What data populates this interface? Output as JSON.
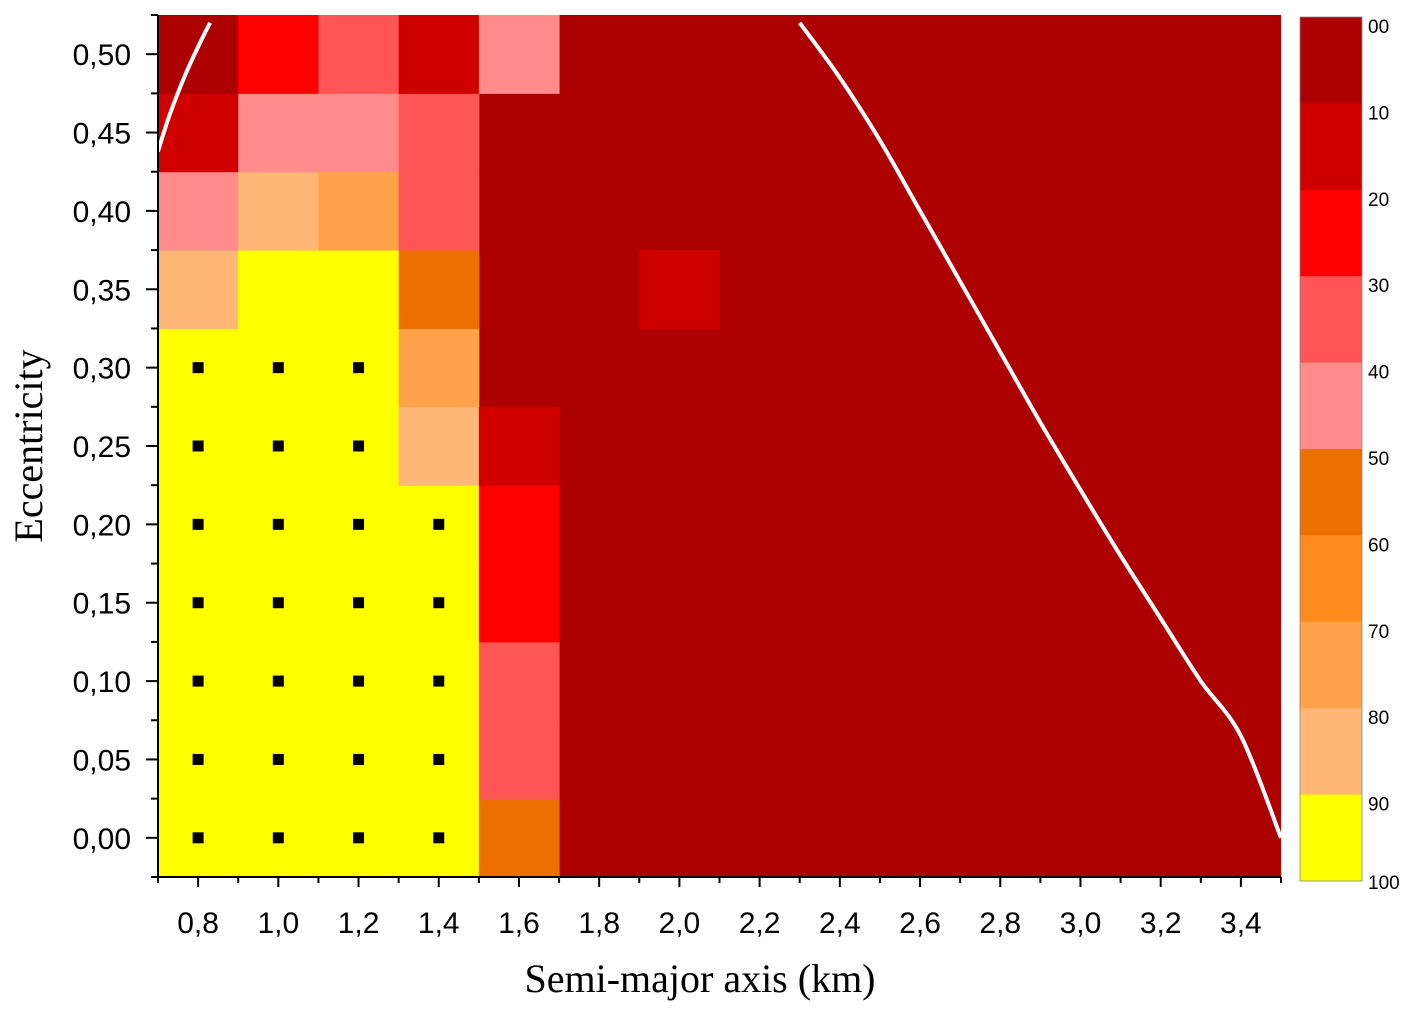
{
  "chart_data": {
    "type": "heatmap",
    "title": "",
    "xlabel": "Semi-major axis (km)",
    "ylabel": "Eccentricity",
    "xlim": [
      0.7,
      3.5
    ],
    "ylim": [
      -0.025,
      0.525
    ],
    "x_ticks": [
      0.8,
      1.0,
      1.2,
      1.4,
      1.6,
      1.8,
      2.0,
      2.2,
      2.4,
      2.6,
      2.8,
      3.0,
      3.2,
      3.4
    ],
    "x_tick_labels": [
      "0,8",
      "1,0",
      "1,2",
      "1,4",
      "1,6",
      "1,8",
      "2,0",
      "2,2",
      "2,4",
      "2,6",
      "2,8",
      "3,0",
      "3,2",
      "3,4"
    ],
    "y_ticks": [
      0.0,
      0.05,
      0.1,
      0.15,
      0.2,
      0.25,
      0.3,
      0.35,
      0.4,
      0.45,
      0.5
    ],
    "y_tick_labels": [
      "0,00",
      "0,05",
      "0,10",
      "0,15",
      "0,20",
      "0,25",
      "0,30",
      "0,35",
      "0,40",
      "0,45",
      "0,50"
    ],
    "x": [
      0.8,
      1.0,
      1.2,
      1.4,
      1.6,
      1.8,
      2.0,
      2.2,
      2.4,
      2.6,
      2.8,
      3.0,
      3.2,
      3.4
    ],
    "y": [
      0.0,
      0.05,
      0.1,
      0.15,
      0.2,
      0.25,
      0.3,
      0.35,
      0.4,
      0.45,
      0.5
    ],
    "default_value": 5,
    "cells": [
      {
        "x": 0.8,
        "y": 0.0,
        "value": 95
      },
      {
        "x": 1.0,
        "y": 0.0,
        "value": 95
      },
      {
        "x": 1.2,
        "y": 0.0,
        "value": 95
      },
      {
        "x": 1.4,
        "y": 0.0,
        "value": 95
      },
      {
        "x": 1.6,
        "y": 0.0,
        "value": 55
      },
      {
        "x": 0.8,
        "y": 0.05,
        "value": 95
      },
      {
        "x": 1.0,
        "y": 0.05,
        "value": 95
      },
      {
        "x": 1.2,
        "y": 0.05,
        "value": 95
      },
      {
        "x": 1.4,
        "y": 0.05,
        "value": 95
      },
      {
        "x": 1.6,
        "y": 0.05,
        "value": 35
      },
      {
        "x": 0.8,
        "y": 0.1,
        "value": 95
      },
      {
        "x": 1.0,
        "y": 0.1,
        "value": 95
      },
      {
        "x": 1.2,
        "y": 0.1,
        "value": 95
      },
      {
        "x": 1.4,
        "y": 0.1,
        "value": 95
      },
      {
        "x": 1.6,
        "y": 0.1,
        "value": 35
      },
      {
        "x": 0.8,
        "y": 0.15,
        "value": 95
      },
      {
        "x": 1.0,
        "y": 0.15,
        "value": 95
      },
      {
        "x": 1.2,
        "y": 0.15,
        "value": 95
      },
      {
        "x": 1.4,
        "y": 0.15,
        "value": 95
      },
      {
        "x": 1.6,
        "y": 0.15,
        "value": 25
      },
      {
        "x": 0.8,
        "y": 0.2,
        "value": 95
      },
      {
        "x": 1.0,
        "y": 0.2,
        "value": 95
      },
      {
        "x": 1.2,
        "y": 0.2,
        "value": 95
      },
      {
        "x": 1.4,
        "y": 0.2,
        "value": 95
      },
      {
        "x": 1.6,
        "y": 0.2,
        "value": 25
      },
      {
        "x": 0.8,
        "y": 0.25,
        "value": 95
      },
      {
        "x": 1.0,
        "y": 0.25,
        "value": 95
      },
      {
        "x": 1.2,
        "y": 0.25,
        "value": 95
      },
      {
        "x": 1.4,
        "y": 0.25,
        "value": 85
      },
      {
        "x": 1.6,
        "y": 0.25,
        "value": 15
      },
      {
        "x": 0.8,
        "y": 0.3,
        "value": 95
      },
      {
        "x": 1.0,
        "y": 0.3,
        "value": 95
      },
      {
        "x": 1.2,
        "y": 0.3,
        "value": 95
      },
      {
        "x": 1.4,
        "y": 0.3,
        "value": 75
      },
      {
        "x": 0.8,
        "y": 0.35,
        "value": 85
      },
      {
        "x": 1.0,
        "y": 0.35,
        "value": 95
      },
      {
        "x": 1.2,
        "y": 0.35,
        "value": 95
      },
      {
        "x": 1.4,
        "y": 0.35,
        "value": 55
      },
      {
        "x": 2.0,
        "y": 0.35,
        "value": 15
      },
      {
        "x": 0.8,
        "y": 0.4,
        "value": 45
      },
      {
        "x": 1.0,
        "y": 0.4,
        "value": 85
      },
      {
        "x": 1.2,
        "y": 0.4,
        "value": 75
      },
      {
        "x": 1.4,
        "y": 0.4,
        "value": 35
      },
      {
        "x": 0.8,
        "y": 0.45,
        "value": 15
      },
      {
        "x": 1.0,
        "y": 0.45,
        "value": 45
      },
      {
        "x": 1.2,
        "y": 0.45,
        "value": 45
      },
      {
        "x": 1.4,
        "y": 0.45,
        "value": 35
      },
      {
        "x": 0.8,
        "y": 0.5,
        "value": 5
      },
      {
        "x": 1.0,
        "y": 0.5,
        "value": 25
      },
      {
        "x": 1.2,
        "y": 0.5,
        "value": 35
      },
      {
        "x": 1.4,
        "y": 0.5,
        "value": 15
      },
      {
        "x": 1.6,
        "y": 0.5,
        "value": 45
      }
    ],
    "markers": [
      {
        "x": 0.8,
        "y": 0.0
      },
      {
        "x": 1.0,
        "y": 0.0
      },
      {
        "x": 1.2,
        "y": 0.0
      },
      {
        "x": 1.4,
        "y": 0.0
      },
      {
        "x": 0.8,
        "y": 0.05
      },
      {
        "x": 1.0,
        "y": 0.05
      },
      {
        "x": 1.2,
        "y": 0.05
      },
      {
        "x": 1.4,
        "y": 0.05
      },
      {
        "x": 0.8,
        "y": 0.1
      },
      {
        "x": 1.0,
        "y": 0.1
      },
      {
        "x": 1.2,
        "y": 0.1
      },
      {
        "x": 1.4,
        "y": 0.1
      },
      {
        "x": 0.8,
        "y": 0.15
      },
      {
        "x": 1.0,
        "y": 0.15
      },
      {
        "x": 1.2,
        "y": 0.15
      },
      {
        "x": 1.4,
        "y": 0.15
      },
      {
        "x": 0.8,
        "y": 0.2
      },
      {
        "x": 1.0,
        "y": 0.2
      },
      {
        "x": 1.2,
        "y": 0.2
      },
      {
        "x": 1.4,
        "y": 0.2
      },
      {
        "x": 0.8,
        "y": 0.25
      },
      {
        "x": 1.0,
        "y": 0.25
      },
      {
        "x": 1.2,
        "y": 0.25
      },
      {
        "x": 0.8,
        "y": 0.3
      },
      {
        "x": 1.0,
        "y": 0.3
      },
      {
        "x": 1.2,
        "y": 0.3
      }
    ],
    "curves": [
      {
        "points": [
          [
            0.7,
            0.438
          ],
          [
            0.73,
            0.462
          ],
          [
            0.77,
            0.488
          ],
          [
            0.81,
            0.51
          ],
          [
            0.83,
            0.52
          ]
        ]
      },
      {
        "points": [
          [
            2.3,
            0.52
          ],
          [
            2.4,
            0.485
          ],
          [
            2.5,
            0.445
          ],
          [
            2.6,
            0.4
          ],
          [
            2.7,
            0.355
          ],
          [
            2.8,
            0.31
          ],
          [
            2.9,
            0.265
          ],
          [
            3.0,
            0.222
          ],
          [
            3.1,
            0.18
          ],
          [
            3.2,
            0.14
          ],
          [
            3.3,
            0.1
          ],
          [
            3.4,
            0.065
          ],
          [
            3.5,
            0.0
          ]
        ]
      }
    ],
    "colorbar": {
      "labels": [
        "00",
        "10",
        "20",
        "30",
        "40",
        "50",
        "60",
        "70",
        "80",
        "90",
        "100"
      ],
      "colors": [
        "#ad0000",
        "#d10000",
        "#ff0000",
        "#ff5555",
        "#ff8b8b",
        "#ec7000",
        "#ff8b1c",
        "#ffa34a",
        "#ffb776",
        "#ffff00"
      ],
      "range": [
        0,
        100
      ]
    },
    "grid": false,
    "legend": "right"
  }
}
